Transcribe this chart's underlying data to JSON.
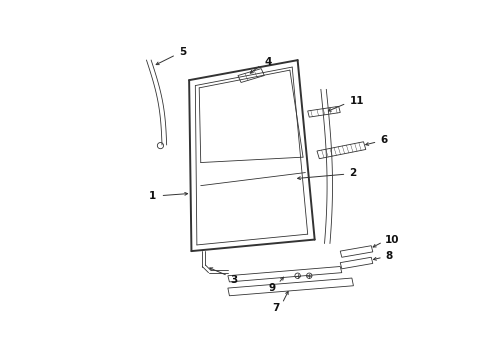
{
  "bg_color": "#ffffff",
  "line_color": "#333333",
  "lw_main": 1.0,
  "lw_thin": 0.6,
  "lw_thick": 1.4
}
